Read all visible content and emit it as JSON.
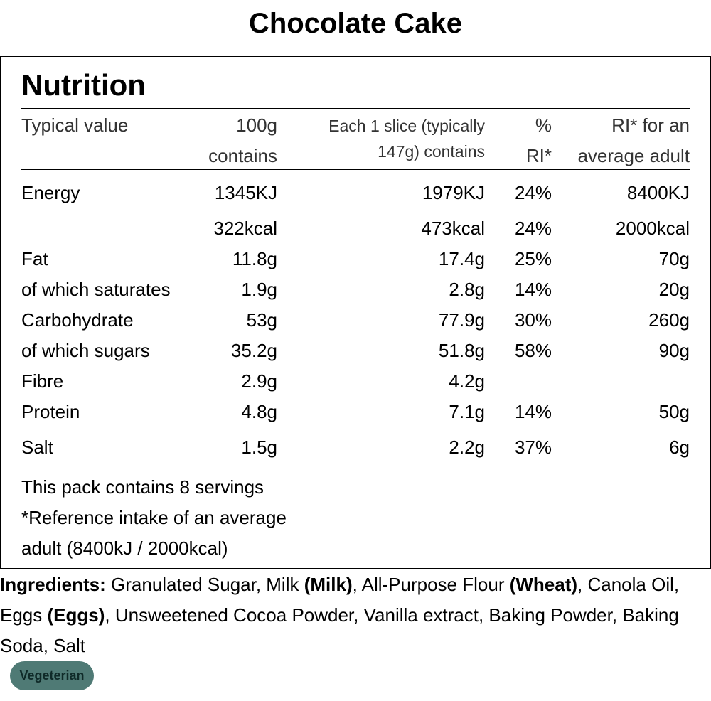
{
  "title": "Chocolate Cake",
  "nutrition": {
    "heading": "Nutrition",
    "headers": {
      "typical": "Typical value",
      "per100": [
        "100g",
        "contains"
      ],
      "perslice": [
        "Each 1 slice (typically",
        "147g) contains"
      ],
      "pct": [
        "%",
        "RI*"
      ],
      "ri": [
        "RI* for an",
        "average adult"
      ]
    },
    "rows": [
      {
        "name": "Energy",
        "per100": "1345KJ",
        "slice": "1979KJ",
        "pct": "24%",
        "ri": "8400KJ"
      },
      {
        "name": "",
        "per100": "322kcal",
        "slice": "473kcal",
        "pct": "24%",
        "ri": "2000kcal"
      },
      {
        "name": "Fat",
        "per100": "11.8g",
        "slice": "17.4g",
        "pct": "25%",
        "ri": "70g"
      },
      {
        "name": "of which saturates",
        "per100": "1.9g",
        "slice": "2.8g",
        "pct": "14%",
        "ri": "20g"
      },
      {
        "name": "Carbohydrate",
        "per100": "53g",
        "slice": "77.9g",
        "pct": "30%",
        "ri": "260g"
      },
      {
        "name": "of which sugars",
        "per100": "35.2g",
        "slice": "51.8g",
        "pct": "58%",
        "ri": "90g"
      },
      {
        "name": "Fibre",
        "per100": "2.9g",
        "slice": "4.2g",
        "pct": "",
        "ri": ""
      },
      {
        "name": "Protein",
        "per100": "4.8g",
        "slice": "7.1g",
        "pct": "14%",
        "ri": "50g"
      },
      {
        "name": "Salt",
        "per100": "1.5g",
        "slice": "2.2g",
        "pct": "37%",
        "ri": "6g"
      }
    ],
    "footer": [
      "This pack contains 8 servings",
      "*Reference intake of an average",
      "adult (8400kJ / 2000kcal)"
    ]
  },
  "ingredients": {
    "label": "Ingredients:",
    "parts": [
      {
        "text": " Granulated Sugar, Milk ",
        "bold": false
      },
      {
        "text": "(Milk)",
        "bold": true
      },
      {
        "text": ", All-Purpose Flour ",
        "bold": false
      },
      {
        "text": "(Wheat)",
        "bold": true
      },
      {
        "text": ", Canola Oil, Eggs ",
        "bold": false
      },
      {
        "text": "(Eggs)",
        "bold": true
      },
      {
        "text": ", Unsweetened Cocoa Powder, Vanilla extract, Baking Powder, Baking Soda, Salt",
        "bold": false
      }
    ]
  },
  "badge": {
    "label": "Vegeterian",
    "color": "#4f7a75"
  }
}
